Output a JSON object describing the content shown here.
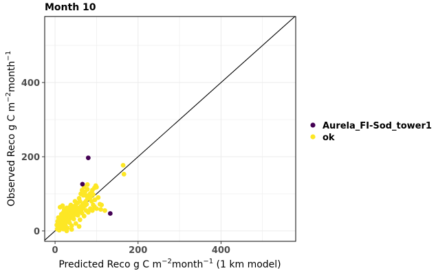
{
  "chart_data": {
    "type": "scatter",
    "title": "Month 10",
    "xlabel": {
      "prefix": "Predicted Reco g C m",
      "sup1": "−2",
      "mid": "month",
      "sup2": "−1",
      "suffix": " (1 km model)"
    },
    "ylabel": {
      "prefix": "Observed Reco g C m",
      "sup1": "−2",
      "mid": "month",
      "sup2": "−1",
      "suffix": ""
    },
    "xlim": [
      -25,
      580
    ],
    "ylim": [
      -28,
      578
    ],
    "xticks": [
      0,
      200,
      400
    ],
    "yticks": [
      0,
      200,
      400
    ],
    "grid": true,
    "reference_line": "1:1",
    "legend_position": "right",
    "series": [
      {
        "name": "Aurela_FI-Sod_tower1",
        "color": "#440154",
        "points": [
          [
            80,
            197
          ],
          [
            66,
            126
          ],
          [
            133,
            47
          ]
        ]
      },
      {
        "name": "ok",
        "color": "#fde725",
        "points": [
          [
            5,
            5
          ],
          [
            8,
            10
          ],
          [
            10,
            18
          ],
          [
            12,
            8
          ],
          [
            14,
            22
          ],
          [
            16,
            14
          ],
          [
            18,
            25
          ],
          [
            20,
            12
          ],
          [
            22,
            30
          ],
          [
            24,
            20
          ],
          [
            26,
            35
          ],
          [
            28,
            26
          ],
          [
            30,
            40
          ],
          [
            32,
            30
          ],
          [
            34,
            44
          ],
          [
            36,
            34
          ],
          [
            38,
            48
          ],
          [
            40,
            38
          ],
          [
            42,
            52
          ],
          [
            44,
            40
          ],
          [
            46,
            55
          ],
          [
            48,
            44
          ],
          [
            50,
            58
          ],
          [
            52,
            46
          ],
          [
            54,
            60
          ],
          [
            56,
            50
          ],
          [
            58,
            62
          ],
          [
            60,
            54
          ],
          [
            62,
            66
          ],
          [
            64,
            58
          ],
          [
            66,
            70
          ],
          [
            68,
            62
          ],
          [
            70,
            75
          ],
          [
            72,
            68
          ],
          [
            74,
            80
          ],
          [
            76,
            72
          ],
          [
            78,
            86
          ],
          [
            80,
            90
          ],
          [
            82,
            96
          ],
          [
            84,
            100
          ],
          [
            86,
            92
          ],
          [
            88,
            104
          ],
          [
            90,
            110
          ],
          [
            92,
            98
          ],
          [
            95,
            116
          ],
          [
            98,
            122
          ],
          [
            100,
            118
          ],
          [
            65,
            110
          ],
          [
            70,
            118
          ],
          [
            75,
            95
          ],
          [
            60,
            80
          ],
          [
            55,
            76
          ],
          [
            50,
            70
          ],
          [
            45,
            66
          ],
          [
            40,
            60
          ],
          [
            35,
            56
          ],
          [
            30,
            52
          ],
          [
            25,
            46
          ],
          [
            20,
            40
          ],
          [
            15,
            34
          ],
          [
            10,
            28
          ],
          [
            12,
            64
          ],
          [
            18,
            68
          ],
          [
            22,
            58
          ],
          [
            28,
            62
          ],
          [
            35,
            64
          ],
          [
            42,
            62
          ],
          [
            50,
            62
          ],
          [
            8,
            36
          ],
          [
            6,
            26
          ],
          [
            4,
            16
          ],
          [
            10,
            2
          ],
          [
            20,
            5
          ],
          [
            30,
            8
          ],
          [
            40,
            14
          ],
          [
            50,
            20
          ],
          [
            60,
            30
          ],
          [
            70,
            40
          ],
          [
            80,
            50
          ],
          [
            90,
            55
          ],
          [
            100,
            60
          ],
          [
            110,
            58
          ],
          [
            112,
            70
          ],
          [
            108,
            72
          ],
          [
            120,
            55
          ],
          [
            85,
            60
          ],
          [
            95,
            65
          ],
          [
            75,
            55
          ],
          [
            65,
            48
          ],
          [
            55,
            42
          ],
          [
            45,
            32
          ],
          [
            35,
            22
          ],
          [
            25,
            15
          ],
          [
            15,
            10
          ],
          [
            28,
            0
          ],
          [
            40,
            4
          ],
          [
            58,
            12
          ],
          [
            20,
            50
          ],
          [
            15,
            45
          ],
          [
            25,
            55
          ],
          [
            30,
            60
          ],
          [
            62,
            100
          ],
          [
            72,
            105
          ],
          [
            78,
            112
          ],
          [
            82,
            88
          ],
          [
            88,
            80
          ],
          [
            92,
            70
          ],
          [
            96,
            84
          ],
          [
            104,
            90
          ],
          [
            78,
            125
          ],
          [
            68,
            96
          ],
          [
            58,
            88
          ],
          [
            48,
            80
          ],
          [
            38,
            70
          ],
          [
            164,
            177
          ],
          [
            166,
            153
          ]
        ]
      }
    ]
  }
}
